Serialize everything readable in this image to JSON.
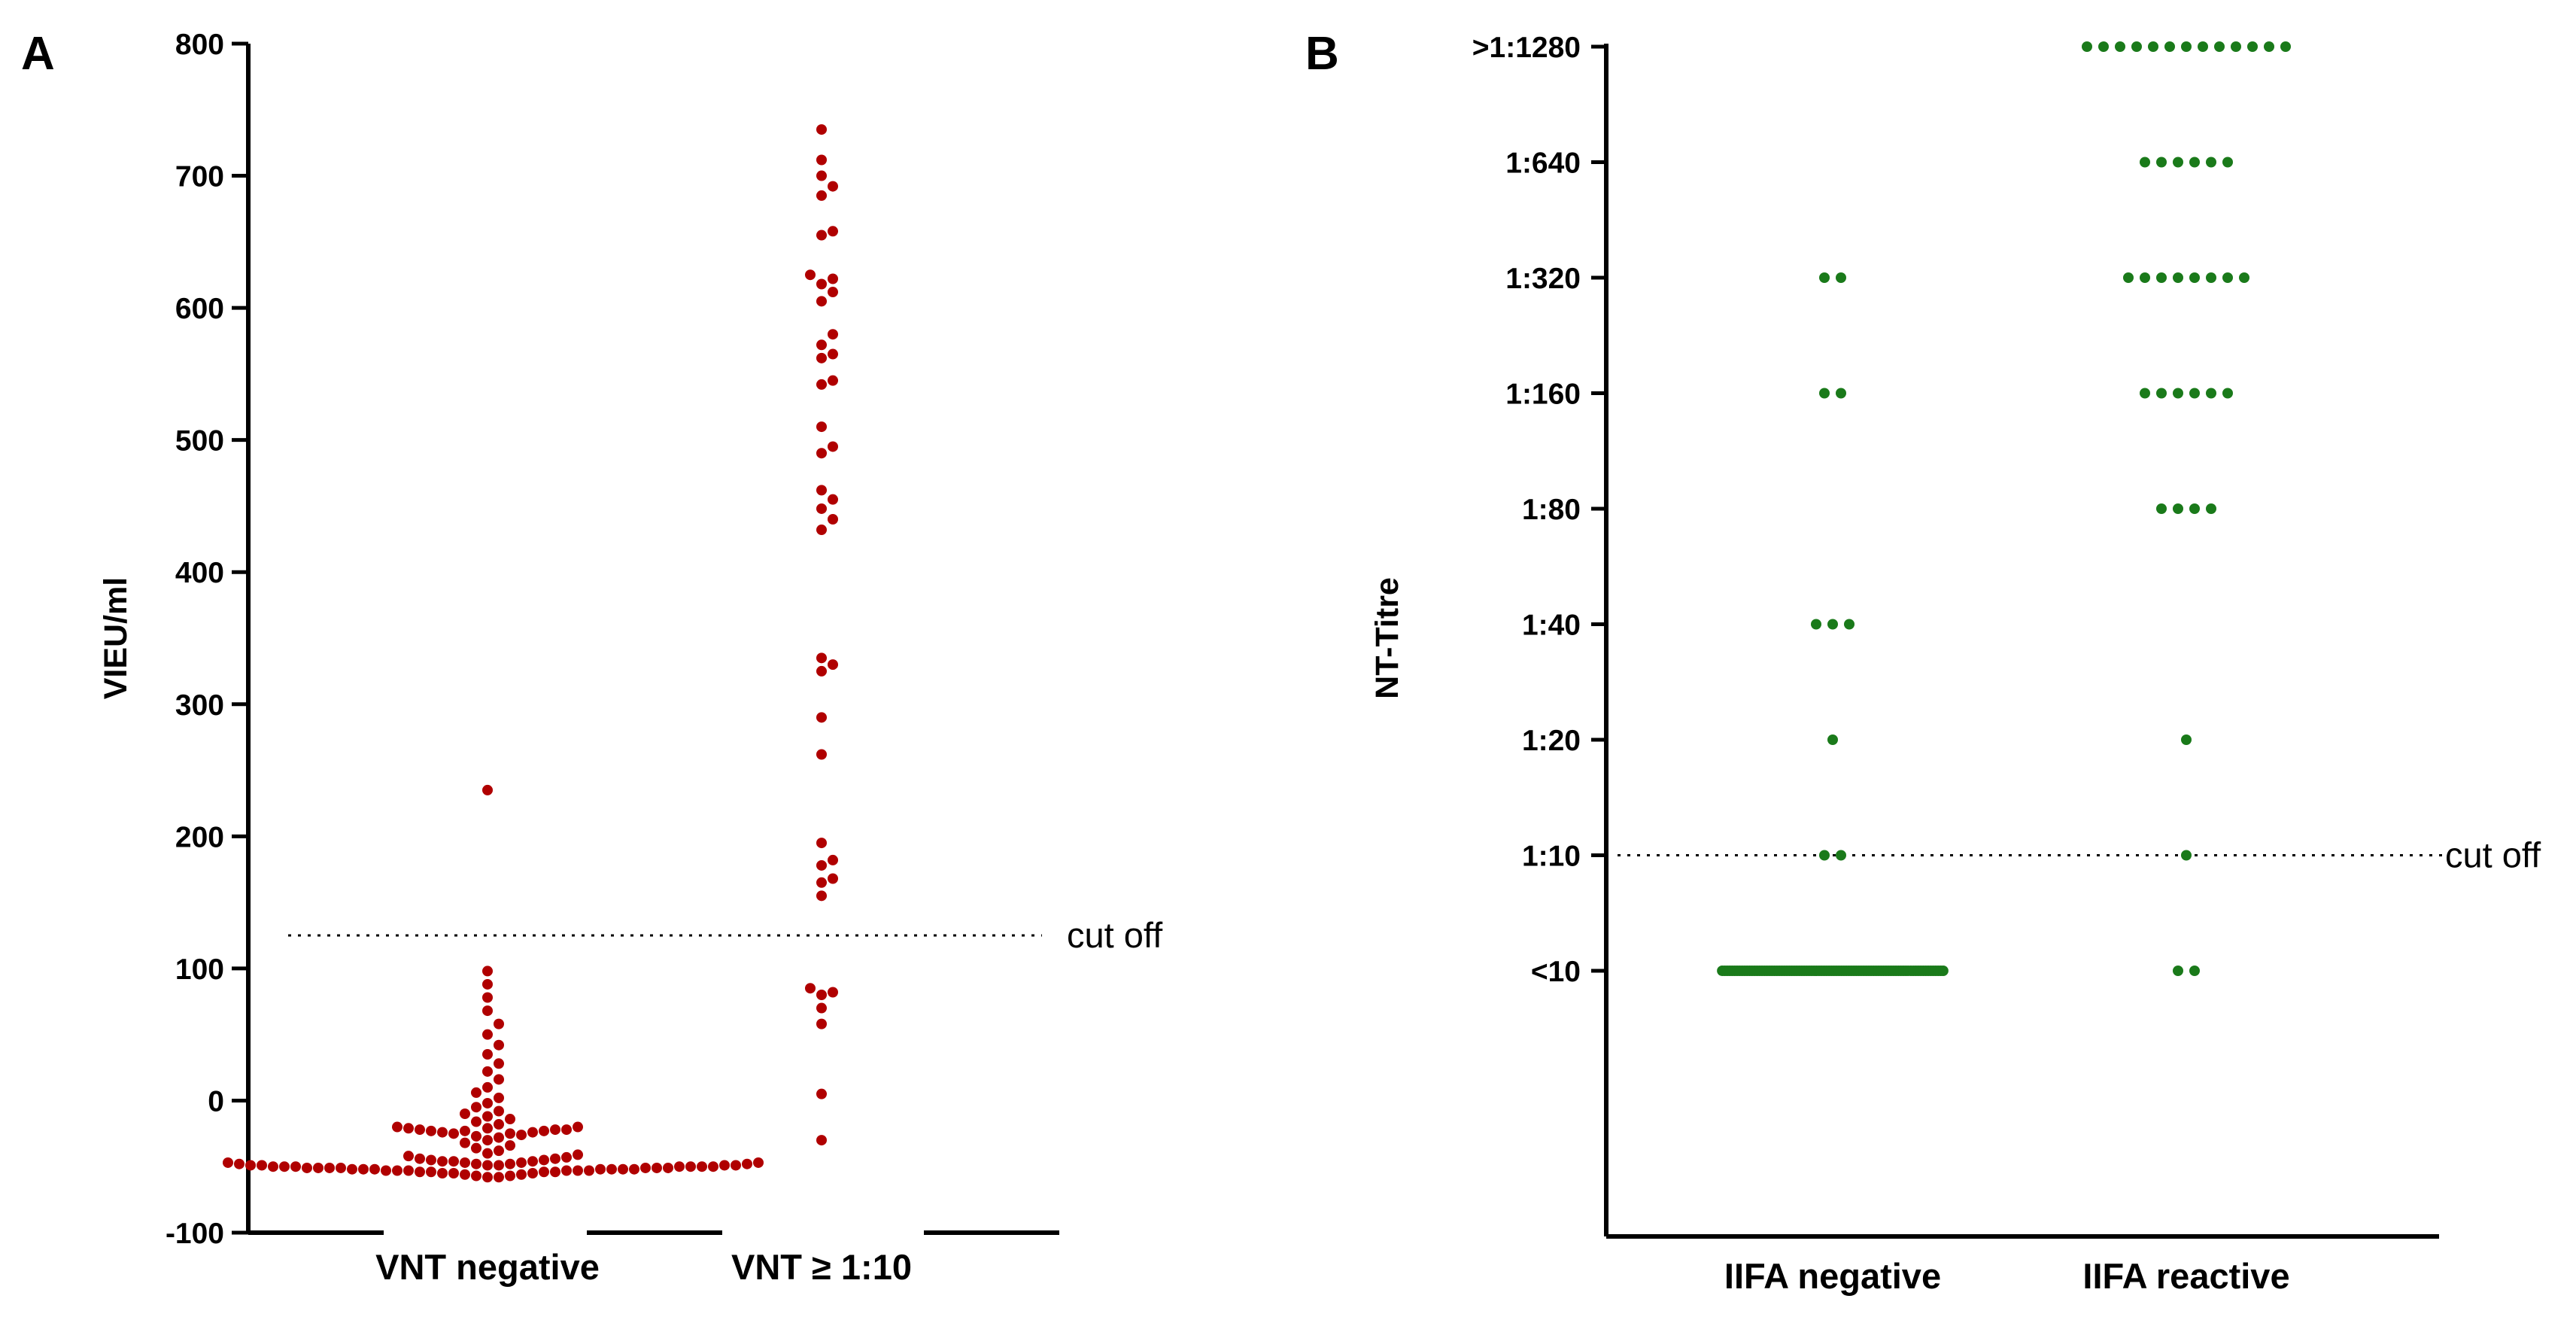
{
  "chart_data": [
    {
      "panel": "A",
      "type": "scatter",
      "ylabel": "VIEU/ml",
      "ylim": [
        -100,
        800
      ],
      "y_ticks": [
        "-100",
        "0",
        "100",
        "200",
        "300",
        "400",
        "500",
        "600",
        "700",
        "800"
      ],
      "y_tick_values": [
        -100,
        0,
        100,
        200,
        300,
        400,
        500,
        600,
        700,
        800
      ],
      "categories": [
        "VNT negative",
        "VNT ≥ 1:10"
      ],
      "cutoff": {
        "label": "cut off",
        "value": 125
      },
      "point_color": "#b00000",
      "groups": [
        {
          "category": "VNT negative",
          "values": [
            235,
            98,
            88,
            78,
            68,
            58,
            50,
            42,
            35,
            28,
            22,
            16,
            10,
            6,
            2,
            -2,
            -5,
            -8,
            -10,
            -12,
            -14,
            -16,
            -18,
            -20,
            -20,
            -21,
            -21,
            -22,
            -22,
            -22,
            -23,
            -23,
            -23,
            -24,
            -24,
            -25,
            -25,
            -26,
            -27,
            -28,
            -30,
            -32,
            -34,
            -36,
            -38,
            -40,
            -41,
            -42,
            -43,
            -44,
            -44,
            -45,
            -45,
            -46,
            -46,
            -46,
            -47,
            -47,
            -47,
            -48,
            -48,
            -48,
            -49,
            -49,
            -49,
            -49,
            -50,
            -50,
            -50,
            -50,
            -50,
            -51,
            -51,
            -51,
            -51,
            -51,
            -52,
            -52,
            -52,
            -52,
            -52,
            -53,
            -53,
            -53,
            -53,
            -54,
            -54,
            -54,
            -55,
            -55,
            -55,
            -56,
            -56,
            -57,
            -57,
            -58,
            -58,
            -49,
            -50,
            -51,
            -52,
            -53,
            -50,
            -51,
            -52,
            -48,
            -49,
            -47,
            -53,
            -54
          ]
        },
        {
          "category": "VNT ≥ 1:10",
          "values": [
            735,
            712,
            700,
            692,
            685,
            658,
            655,
            625,
            622,
            618,
            612,
            605,
            580,
            572,
            565,
            562,
            545,
            542,
            510,
            495,
            490,
            462,
            455,
            448,
            440,
            432,
            335,
            330,
            325,
            290,
            262,
            195,
            182,
            178,
            168,
            165,
            155,
            85,
            82,
            80,
            70,
            58,
            5,
            -30
          ]
        }
      ]
    },
    {
      "panel": "B",
      "type": "scatter",
      "ylabel": "NT-Titre",
      "y_ticks": [
        "<10",
        "1:10",
        "1:20",
        "1:40",
        "1:80",
        "1:160",
        "1:320",
        "1:640",
        ">1:1280"
      ],
      "categories": [
        "IIFA negative",
        "IIFA reactive"
      ],
      "cutoff": {
        "label": "cut off",
        "level": "1:10"
      },
      "point_color": "#1a7a1a",
      "groups": [
        {
          "category": "IIFA negative",
          "counts": {
            "<10": 90,
            "1:10": 2,
            "1:20": 1,
            "1:40": 3,
            "1:80": 0,
            "1:160": 2,
            "1:320": 2,
            "1:640": 0,
            ">1:1280": 0
          }
        },
        {
          "category": "IIFA reactive",
          "counts": {
            "<10": 2,
            "1:10": 1,
            "1:20": 1,
            "1:40": 0,
            "1:80": 4,
            "1:160": 6,
            "1:320": 8,
            "1:640": 6,
            ">1:1280": 13
          }
        }
      ]
    }
  ]
}
